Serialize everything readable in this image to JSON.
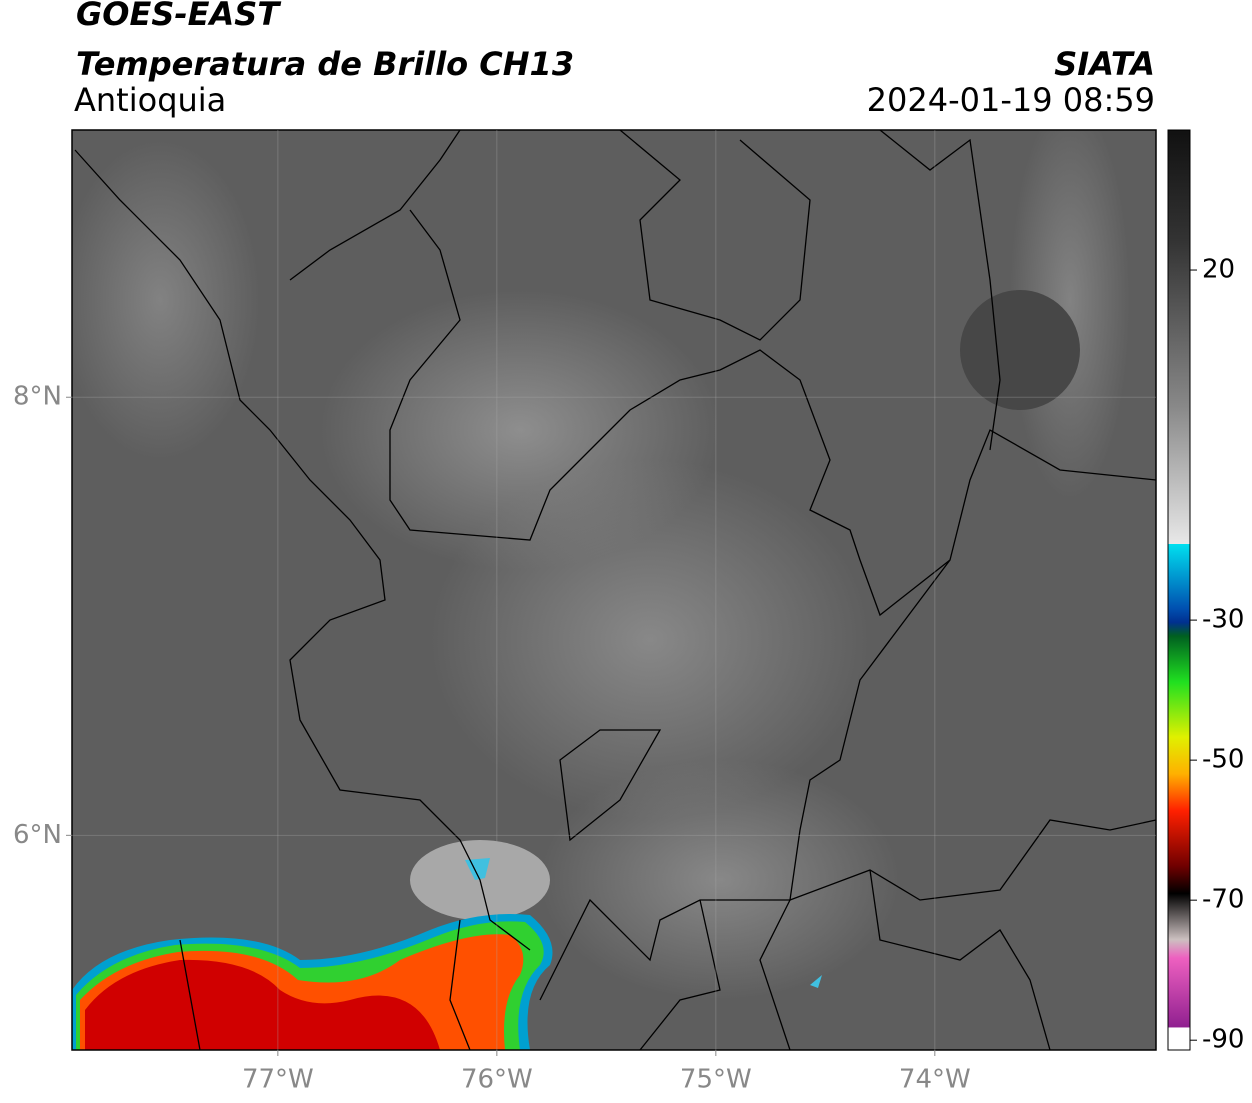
{
  "header": {
    "satellite": "GOES-EAST",
    "product": "Temperatura de Brillo CH13",
    "region": "Antioquia",
    "source": "SIATA",
    "datetime": "2024-01-19 08:59"
  },
  "map": {
    "lonlim": [
      -77.94,
      -72.99
    ],
    "latlim": [
      5.02,
      9.22
    ],
    "lon_ticks": [
      {
        "value": -77,
        "label": "77°W"
      },
      {
        "value": -76,
        "label": "76°W"
      },
      {
        "value": -75,
        "label": "75°W"
      },
      {
        "value": -74,
        "label": "74°W"
      }
    ],
    "lat_ticks": [
      {
        "value": 8,
        "label": "8°N"
      },
      {
        "value": 6,
        "label": "6°N"
      }
    ]
  },
  "colorbar": {
    "lim": [
      -91.4,
      40
    ],
    "ticks": [
      20,
      -30,
      -50,
      -70,
      -90
    ]
  }
}
